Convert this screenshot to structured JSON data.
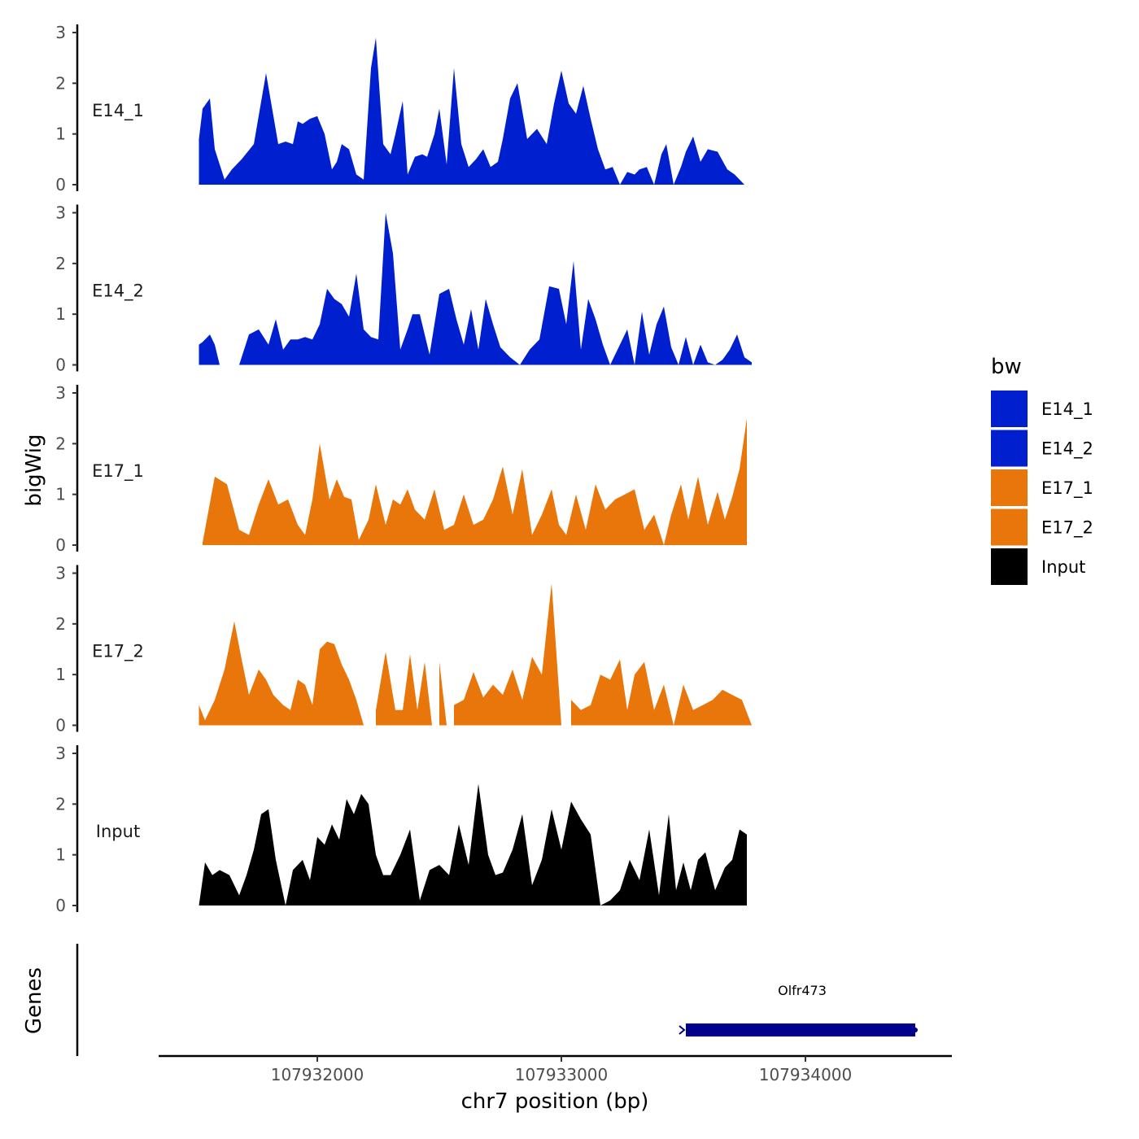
{
  "chart_data": {
    "type": "area",
    "xlabel": "chr7 position (bp)",
    "ylabel": "bigWig",
    "genes_label": "Genes",
    "xlim": [
      107931350,
      107934600
    ],
    "x_ticks": [
      107932000,
      107933000,
      107934000
    ],
    "x_tick_labels": [
      "107932000",
      "107933000",
      "107934000"
    ],
    "ylim": [
      0,
      3
    ],
    "y_ticks": [
      0,
      1,
      2,
      3
    ],
    "y_tick_labels": [
      "0",
      "1",
      "2",
      "3"
    ],
    "legend": {
      "title": "bw",
      "position": "right",
      "entries": [
        {
          "name": "E14_1",
          "color": "#0020CF"
        },
        {
          "name": "E14_2",
          "color": "#0020CF"
        },
        {
          "name": "E17_1",
          "color": "#E8760A"
        },
        {
          "name": "E17_2",
          "color": "#E8760A"
        },
        {
          "name": "Input",
          "color": "#000000"
        }
      ]
    },
    "series": [
      {
        "name": "E14_1",
        "color": "#0020CF",
        "x": [
          107931515,
          107931530,
          107931560,
          107931580,
          107931620,
          107931650,
          107931690,
          107931740,
          107931790,
          107931840,
          107931870,
          107931900,
          107931920,
          107931940,
          107931970,
          107932000,
          107932030,
          107932060,
          107932080,
          107932100,
          107932130,
          107932160,
          107932190,
          107932220,
          107932240,
          107932270,
          107932300,
          107932320,
          107932350,
          107932370,
          107932400,
          107932430,
          107932450,
          107932480,
          107932500,
          107932530,
          107932560,
          107932590,
          107932620,
          107932650,
          107932680,
          107932710,
          107932740,
          107932760,
          107932790,
          107932820,
          107932860,
          107932900,
          107932940,
          107932970,
          107933000,
          107933030,
          107933060,
          107933090,
          107933120,
          107933150,
          107933180,
          107933210,
          107933240,
          107933270,
          107933300,
          107933320,
          107933350,
          107933380,
          107933410,
          107933430,
          107933460,
          107933490,
          107933510,
          107933540,
          107933570,
          107933600,
          107933640,
          107933680,
          107933710,
          107933730,
          107933750
        ],
        "values": [
          0.9,
          1.5,
          1.7,
          0.7,
          0.1,
          0.3,
          0.5,
          0.8,
          2.2,
          0.8,
          0.85,
          0.8,
          1.25,
          1.2,
          1.3,
          1.35,
          1.0,
          0.3,
          0.45,
          0.8,
          0.7,
          0.2,
          0.1,
          2.3,
          2.9,
          0.8,
          0.6,
          1.0,
          1.65,
          0.2,
          0.55,
          0.6,
          0.55,
          1.0,
          1.5,
          0.4,
          2.3,
          0.8,
          0.35,
          0.5,
          0.7,
          0.35,
          0.45,
          0.9,
          1.7,
          2.0,
          0.9,
          1.1,
          0.8,
          1.6,
          2.25,
          1.6,
          1.4,
          1.95,
          1.3,
          0.7,
          0.3,
          0.35,
          0.0,
          0.25,
          0.2,
          0.3,
          0.35,
          0.0,
          0.6,
          0.8,
          0.0,
          0.35,
          0.65,
          0.95,
          0.45,
          0.7,
          0.65,
          0.3,
          0.2,
          0.1,
          0.0
        ]
      },
      {
        "name": "E14_2",
        "color": "#0020CF",
        "x": [
          107931515,
          107931530,
          107931560,
          107931580,
          107931600,
          107931640,
          107931680,
          107931720,
          107931760,
          107931800,
          107931830,
          107931860,
          107931890,
          107931920,
          107931950,
          107931980,
          107932010,
          107932040,
          107932070,
          107932100,
          107932130,
          107932160,
          107932190,
          107932220,
          107932250,
          107932280,
          107932310,
          107932340,
          107932370,
          107932390,
          107932420,
          107932460,
          107932500,
          107932540,
          107932570,
          107932600,
          107932630,
          107932660,
          107932690,
          107932720,
          107932750,
          107932790,
          107932830,
          107932870,
          107932910,
          107932950,
          107932990,
          107933020,
          107933050,
          107933080,
          107933110,
          107933140,
          107933170,
          107933200,
          107933240,
          107933270,
          107933300,
          107933330,
          107933360,
          107933390,
          107933420,
          107933450,
          107933480,
          107933510,
          107933540,
          107933570,
          107933600,
          107933630,
          107933660,
          107933690,
          107933720,
          107933750,
          107933780
        ],
        "values": [
          0.4,
          0.45,
          0.6,
          0.4,
          0.0,
          0.0,
          0.0,
          0.6,
          0.7,
          0.4,
          0.9,
          0.3,
          0.5,
          0.5,
          0.55,
          0.5,
          0.8,
          1.5,
          1.3,
          1.2,
          0.95,
          1.8,
          0.7,
          0.55,
          0.5,
          3.0,
          2.2,
          0.3,
          0.7,
          1.0,
          1.0,
          0.2,
          1.4,
          1.5,
          0.9,
          0.4,
          1.1,
          0.3,
          1.3,
          0.8,
          0.35,
          0.15,
          0.0,
          0.3,
          0.5,
          1.55,
          1.5,
          0.8,
          2.05,
          0.3,
          1.3,
          0.9,
          0.4,
          0.0,
          0.4,
          0.7,
          0.0,
          1.05,
          0.2,
          0.8,
          1.15,
          0.35,
          0.0,
          0.55,
          0.0,
          0.4,
          0.05,
          0.0,
          0.1,
          0.3,
          0.6,
          0.15,
          0.05
        ]
      },
      {
        "name": "E17_1",
        "color": "#E8760A",
        "x": [
          107931530,
          107931580,
          107931630,
          107931680,
          107931720,
          107931760,
          107931800,
          107931840,
          107931880,
          107931920,
          107931950,
          107931980,
          107932010,
          107932050,
          107932080,
          107932110,
          107932140,
          107932170,
          107932210,
          107932240,
          107932280,
          107932310,
          107932340,
          107932370,
          107932400,
          107932440,
          107932480,
          107932520,
          107932560,
          107932600,
          107932640,
          107932680,
          107932720,
          107932760,
          107932800,
          107932840,
          107932880,
          107932920,
          107932960,
          107932990,
          107933020,
          107933060,
          107933100,
          107933140,
          107933180,
          107933220,
          107933260,
          107933300,
          107933340,
          107933380,
          107933420,
          107933450,
          107933490,
          107933520,
          107933560,
          107933600,
          107933640,
          107933670,
          107933700,
          107933730,
          107933760
        ],
        "values": [
          0.05,
          1.35,
          1.2,
          0.3,
          0.2,
          0.8,
          1.3,
          0.8,
          0.9,
          0.4,
          0.2,
          0.9,
          2.0,
          0.9,
          1.3,
          0.95,
          0.9,
          0.1,
          0.5,
          1.2,
          0.4,
          0.9,
          0.8,
          1.1,
          0.7,
          0.5,
          1.1,
          0.3,
          0.4,
          1.0,
          0.4,
          0.5,
          0.9,
          1.55,
          0.6,
          1.5,
          0.2,
          0.6,
          1.1,
          0.4,
          0.2,
          1.0,
          0.3,
          1.2,
          0.7,
          0.9,
          1.0,
          1.1,
          0.3,
          0.6,
          0.0,
          0.6,
          1.2,
          0.5,
          1.35,
          0.4,
          1.05,
          0.5,
          0.95,
          1.5,
          2.5
        ]
      },
      {
        "name": "E17_2",
        "color": "#E8760A",
        "x": [
          107931515,
          107931540,
          107931580,
          107931620,
          107931660,
          107931690,
          107931720,
          107931760,
          107931790,
          107931820,
          107931860,
          107931890,
          107931920,
          107931950,
          107931980,
          107932010,
          107932040,
          107932070,
          107932100,
          107932130,
          107932160,
          107932190,
          107932240,
          107932280,
          107932320,
          107932350,
          107932380,
          107932410,
          107932440,
          107932470,
          107932500,
          107932530,
          107932560,
          107932600,
          107932640,
          107932680,
          107932720,
          107932760,
          107932800,
          107932840,
          107932880,
          107932920,
          107932960,
          107933000,
          107933040,
          107933080,
          107933120,
          107933160,
          107933200,
          107933240,
          107933270,
          107933300,
          107933340,
          107933380,
          107933420,
          107933460,
          107933500,
          107933540,
          107933580,
          107933620,
          107933660,
          107933700,
          107933740,
          107933780
        ],
        "values": [
          0.4,
          0.1,
          0.5,
          1.1,
          2.05,
          1.3,
          0.6,
          1.1,
          0.9,
          0.6,
          0.4,
          0.3,
          0.9,
          0.8,
          0.4,
          1.5,
          1.65,
          1.6,
          1.2,
          0.9,
          0.5,
          0.0,
          0.3,
          1.45,
          0.3,
          0.3,
          1.4,
          0.3,
          1.25,
          0.0,
          1.25,
          0.0,
          0.4,
          0.5,
          1.05,
          0.55,
          0.8,
          0.6,
          1.1,
          0.5,
          1.35,
          1.0,
          2.8,
          0.0,
          0.5,
          0.3,
          0.4,
          1.0,
          0.9,
          1.3,
          0.3,
          1.0,
          1.25,
          0.3,
          0.8,
          0.0,
          0.8,
          0.3,
          0.4,
          0.5,
          0.7,
          0.6,
          0.5,
          0.0
        ],
        "gaps_after_index": [
          21,
          29,
          31,
          43
        ]
      },
      {
        "name": "Input",
        "color": "#000000",
        "x": [
          107931515,
          107931540,
          107931570,
          107931600,
          107931640,
          107931680,
          107931710,
          107931740,
          107931770,
          107931800,
          107931830,
          107931870,
          107931900,
          107931940,
          107931970,
          107932000,
          107932030,
          107932060,
          107932090,
          107932120,
          107932150,
          107932180,
          107932210,
          107932240,
          107932270,
          107932300,
          107932340,
          107932380,
          107932420,
          107932460,
          107932500,
          107932540,
          107932580,
          107932620,
          107932660,
          107932700,
          107932730,
          107932760,
          107932800,
          107932840,
          107932880,
          107932920,
          107932960,
          107933000,
          107933040,
          107933080,
          107933120,
          107933160,
          107933200,
          107933240,
          107933280,
          107933320,
          107933360,
          107933400,
          107933440,
          107933470,
          107933500,
          107933530,
          107933560,
          107933590,
          107933630,
          107933670,
          107933700,
          107933730,
          107933760
        ],
        "values": [
          0.0,
          0.85,
          0.6,
          0.7,
          0.6,
          0.2,
          0.6,
          1.1,
          1.8,
          1.9,
          0.9,
          0.0,
          0.7,
          0.9,
          0.5,
          1.35,
          1.2,
          1.6,
          1.3,
          2.1,
          1.8,
          2.2,
          2.0,
          1.0,
          0.6,
          0.6,
          1.0,
          1.5,
          0.1,
          0.7,
          0.8,
          0.6,
          1.6,
          0.8,
          2.4,
          1.0,
          0.6,
          0.65,
          1.1,
          1.8,
          0.4,
          0.9,
          1.9,
          1.1,
          2.05,
          1.7,
          1.4,
          0.0,
          0.1,
          0.3,
          0.9,
          0.5,
          1.5,
          0.2,
          1.8,
          0.3,
          0.85,
          0.3,
          0.9,
          1.05,
          0.3,
          0.75,
          0.9,
          1.5,
          1.4
        ]
      }
    ],
    "genes": [
      {
        "name": "Olfr473",
        "start": 107933510,
        "end": 107934450,
        "strand": "+",
        "color": "#00008B"
      }
    ]
  }
}
